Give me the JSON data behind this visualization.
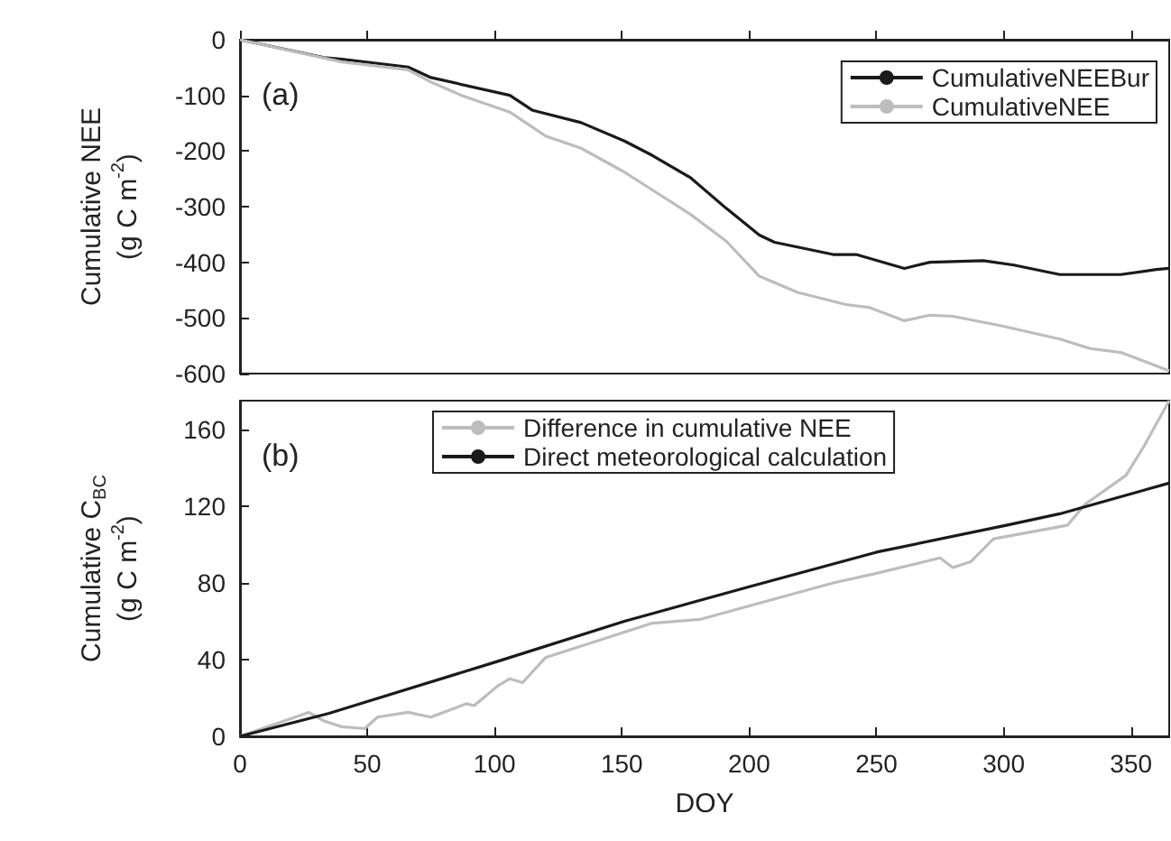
{
  "chart_data": [
    {
      "type": "line",
      "ylabel": "Cumulative NEE\n(g C m$^{-2}$)",
      "annotations": [
        "(a)"
      ],
      "legend": "top right",
      "tick_labels": "y",
      "xlim": [
        0,
        365
      ],
      "xticks": [
        0,
        50,
        100,
        150,
        200,
        250,
        300,
        350
      ],
      "ylim": [
        -600,
        0
      ],
      "yticks": [
        -600,
        -500,
        -400,
        -300,
        -200,
        -100,
        0
      ],
      "series": [
        {
          "name": "CumulativeNEEBur",
          "color": "#1a1a1a",
          "x": [
            0,
            33,
            40,
            66,
            75,
            106,
            115,
            134,
            151,
            162,
            177,
            191,
            204,
            210,
            233,
            242,
            261,
            271,
            292,
            304,
            322,
            346,
            360,
            365
          ],
          "values": [
            0,
            -32,
            -35,
            -49,
            -68,
            -100,
            -127,
            -149,
            -182,
            -208,
            -248,
            -303,
            -351,
            -364,
            -386,
            -386,
            -411,
            -400,
            -397,
            -405,
            -422,
            -422,
            -413,
            -411
          ]
        },
        {
          "name": "CumulativeNEE",
          "color": "#bdbdbd",
          "x": [
            0,
            40,
            66,
            75,
            87,
            106,
            120,
            134,
            151,
            177,
            191,
            204,
            219,
            238,
            247,
            261,
            271,
            280,
            299,
            322,
            334,
            346,
            365
          ],
          "values": [
            0,
            -40,
            -54,
            -76,
            -100,
            -130,
            -173,
            -195,
            -238,
            -314,
            -362,
            -425,
            -454,
            -476,
            -481,
            -505,
            -495,
            -497,
            -514,
            -538,
            -555,
            -562,
            -595
          ]
        }
      ]
    },
    {
      "type": "line",
      "ylabel": "Cumulative C$_{BC}$\n(g C m$^{-2}$)",
      "xlabel": "DOY",
      "annotations": [
        "(b)"
      ],
      "legend": "top",
      "xlim": [
        0,
        365
      ],
      "xticks": [
        0,
        50,
        100,
        150,
        200,
        250,
        300,
        350
      ],
      "ylim": [
        0,
        175
      ],
      "yticks": [
        0,
        40,
        80,
        120,
        160
      ],
      "series": [
        {
          "name": "Difference in cumulative NEE",
          "color": "#bdbdbd",
          "x": [
            0,
            27,
            33,
            40,
            49,
            54,
            66,
            75,
            89,
            92,
            101,
            106,
            111,
            120,
            134,
            162,
            181,
            200,
            233,
            250,
            275,
            280,
            287,
            296,
            325,
            332,
            348,
            355,
            365
          ],
          "values": [
            0,
            12.5,
            8,
            5,
            4,
            10,
            12.5,
            10,
            17,
            16,
            26,
            30,
            28,
            41,
            47,
            59,
            61,
            68,
            80,
            85,
            93,
            88,
            91,
            103,
            110,
            121,
            136,
            151,
            175
          ]
        },
        {
          "name": "Direct meteorological calculation",
          "color": "#1a1a1a",
          "x": [
            0,
            35,
            101,
            151,
            200,
            250,
            301,
            322,
            365
          ],
          "values": [
            0,
            12,
            39,
            60,
            78,
            96,
            110,
            116,
            132
          ]
        }
      ]
    }
  ]
}
